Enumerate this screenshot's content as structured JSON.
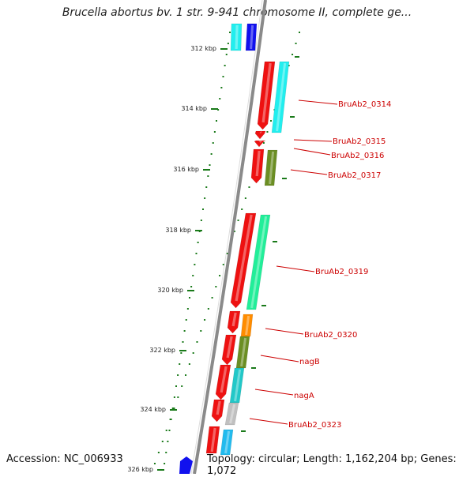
{
  "title": "Brucella abortus bv. 1 str. 9-941 chromosome II, complete ge...",
  "accession": "Accession: NC_006933",
  "topology": "Topology: circular; Length: 1,162,204 bp; Genes: 1,072",
  "scale_labels": [
    "312 kbp",
    "314 kbp",
    "316 kbp",
    "318 kbp",
    "320 kbp",
    "322 kbp",
    "324 kbp",
    "326 kbp"
  ],
  "gene_labels": [
    "BruAb2_0314",
    "BruAb2_0315",
    "BruAb2_0316",
    "BruAb2_0317",
    "BruAb2_0319",
    "BruAb2_0320",
    "nagB",
    "nagA",
    "BruAb2_0323"
  ],
  "colors": {
    "backbone": "#8a8a8a",
    "forward_strand": "#ee1111",
    "label_text": "#cc0000",
    "scale_tick": "#1a7a1a",
    "cyan": "#22eeee",
    "blue": "#1111ee",
    "olive": "#6b8e23",
    "mint": "#22ee99",
    "orange": "#ff8c00",
    "teal": "#22c8c8",
    "gray": "#c0c0c0",
    "sky": "#22bbee"
  }
}
